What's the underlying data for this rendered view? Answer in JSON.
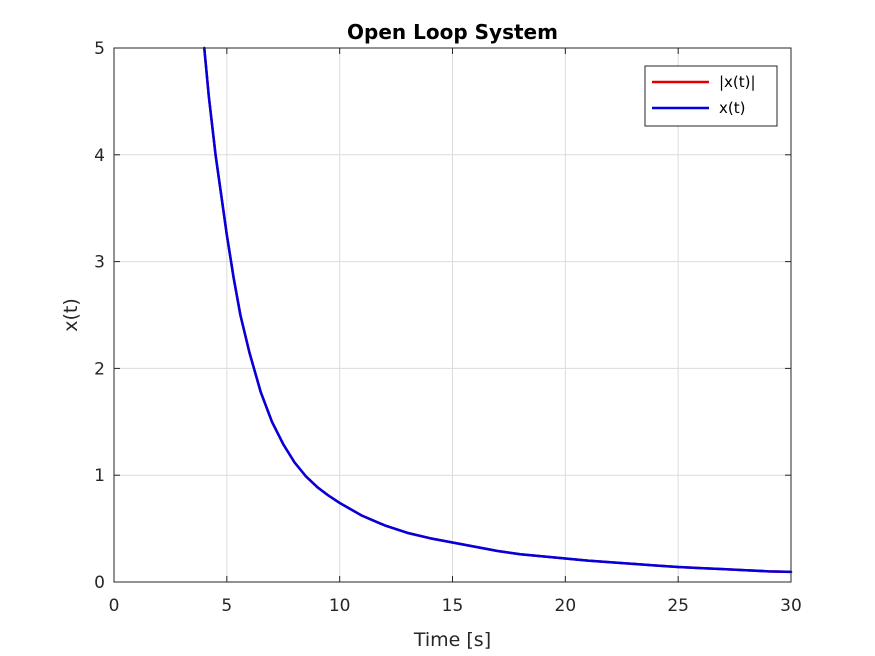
{
  "chart_data": {
    "type": "line",
    "title": "Open Loop System",
    "xlabel": "Time [s]",
    "ylabel": "x(t)",
    "xlim": [
      0,
      30
    ],
    "ylim": [
      0,
      5
    ],
    "xticks": [
      0,
      5,
      10,
      15,
      20,
      25,
      30
    ],
    "yticks": [
      0,
      1,
      2,
      3,
      4,
      5
    ],
    "xtick_labels": [
      "0",
      "5",
      "10",
      "15",
      "20",
      "25",
      "30"
    ],
    "ytick_labels": [
      "0",
      "1",
      "2",
      "3",
      "4",
      "5"
    ],
    "grid": true,
    "legend": {
      "placement": "top-right",
      "entries": [
        "|x(t)|",
        "x(t)"
      ]
    },
    "series": [
      {
        "name": "|x(t)|",
        "color": "#e00000",
        "x": [
          4.0,
          4.2,
          4.5,
          4.8,
          5.0,
          5.3,
          5.6,
          6.0,
          6.5,
          7.0,
          7.5,
          8.0,
          8.5,
          9.0,
          9.5,
          10.0,
          11.0,
          12.0,
          13.0,
          14.0,
          15.0,
          16.0,
          17.0,
          18.0,
          19.0,
          20.0,
          21.0,
          22.0,
          23.0,
          24.0,
          25.0,
          26.0,
          27.0,
          28.0,
          29.0,
          30.0
        ],
        "y": [
          5.0,
          4.55,
          4.0,
          3.55,
          3.25,
          2.85,
          2.5,
          2.15,
          1.78,
          1.5,
          1.29,
          1.12,
          0.99,
          0.89,
          0.81,
          0.74,
          0.62,
          0.53,
          0.46,
          0.41,
          0.37,
          0.33,
          0.29,
          0.26,
          0.24,
          0.22,
          0.2,
          0.185,
          0.17,
          0.155,
          0.14,
          0.13,
          0.12,
          0.11,
          0.1,
          0.095
        ]
      },
      {
        "name": "x(t)",
        "color": "#0000e0",
        "x": [
          4.0,
          4.2,
          4.5,
          4.8,
          5.0,
          5.3,
          5.6,
          6.0,
          6.5,
          7.0,
          7.5,
          8.0,
          8.5,
          9.0,
          9.5,
          10.0,
          11.0,
          12.0,
          13.0,
          14.0,
          15.0,
          16.0,
          17.0,
          18.0,
          19.0,
          20.0,
          21.0,
          22.0,
          23.0,
          24.0,
          25.0,
          26.0,
          27.0,
          28.0,
          29.0,
          30.0
        ],
        "y": [
          5.0,
          4.55,
          4.0,
          3.55,
          3.25,
          2.85,
          2.5,
          2.15,
          1.78,
          1.5,
          1.29,
          1.12,
          0.99,
          0.89,
          0.81,
          0.74,
          0.62,
          0.53,
          0.46,
          0.41,
          0.37,
          0.33,
          0.29,
          0.26,
          0.24,
          0.22,
          0.2,
          0.185,
          0.17,
          0.155,
          0.14,
          0.13,
          0.12,
          0.11,
          0.1,
          0.095
        ]
      }
    ]
  }
}
